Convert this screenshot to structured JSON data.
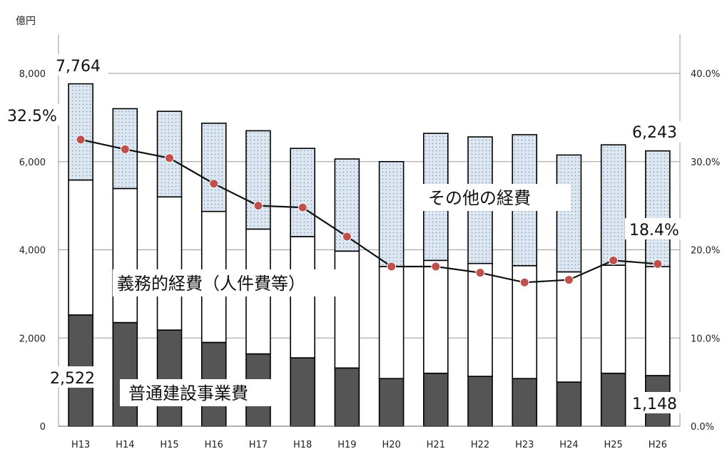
{
  "chart_data": {
    "type": "bar",
    "stacked": true,
    "unit_left": "億円",
    "categories": [
      "H13",
      "H14",
      "H15",
      "H16",
      "H17",
      "H18",
      "H19",
      "H20",
      "H21",
      "H22",
      "H23",
      "H24",
      "H25",
      "H26"
    ],
    "series": [
      {
        "name": "普通建設事業費",
        "color": "#555555",
        "values": [
          2522,
          2350,
          2180,
          1900,
          1640,
          1550,
          1320,
          1080,
          1200,
          1130,
          1080,
          1000,
          1200,
          1148
        ]
      },
      {
        "name": "義務的経費（人件費等）",
        "color": "#ffffff",
        "values": [
          3060,
          3040,
          3020,
          2970,
          2830,
          2750,
          2650,
          2540,
          2560,
          2560,
          2560,
          2500,
          2450,
          2470
        ]
      },
      {
        "name": "その他の経費",
        "color": "#d8e4f0",
        "values": [
          2182,
          1810,
          1940,
          2000,
          2230,
          2000,
          2090,
          2380,
          2880,
          2870,
          2970,
          2650,
          2730,
          2625
        ]
      }
    ],
    "line": {
      "values": [
        32.5,
        31.4,
        30.4,
        27.5,
        25.0,
        24.8,
        21.5,
        18.1,
        18.1,
        17.4,
        16.3,
        16.6,
        18.8,
        18.4
      ]
    },
    "y_left": {
      "min": 0,
      "max": 8000,
      "ticks": [
        "0",
        "2,000",
        "4,000",
        "6,000",
        "8,000"
      ]
    },
    "y_right": {
      "min": 0,
      "max": 40,
      "ticks": [
        "0.0%",
        "10.0%",
        "20.0%",
        "30.0%",
        "40.0%"
      ]
    },
    "annotations": {
      "total_first": "7,764",
      "pct_first": "32.5%",
      "total_last": "6,243",
      "pct_last": "18.4%",
      "construction_first": "2,522",
      "construction_last": "1,148"
    },
    "series_labels": {
      "other": "その他の経費",
      "mandatory": "義務的経費（人件費等）",
      "construction": "普通建設事業費"
    },
    "grid": true
  }
}
